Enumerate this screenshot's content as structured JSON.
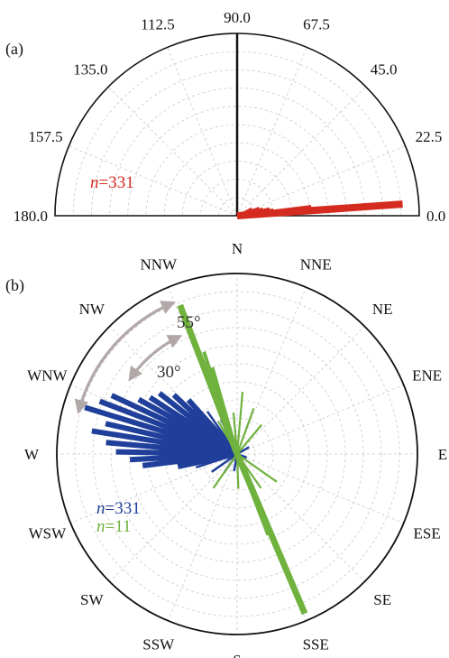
{
  "chart_data": [
    {
      "type": "polar-bar",
      "panel_label": "(a)",
      "range_deg": [
        0,
        180
      ],
      "angle_tick_labels": [
        "0.0",
        "22.5",
        "45.0",
        "67.5",
        "90.0",
        "112.5",
        "135.0",
        "157.5",
        "180.0"
      ],
      "annotation": {
        "n_italic": "n",
        "text": "=331",
        "color": "#d42a1f"
      },
      "series": [
        {
          "color": "#d42a1f",
          "bars": [
            {
              "angle": 4,
              "value": 1.0
            },
            {
              "angle": 7,
              "value": 0.45
            },
            {
              "angle": 10,
              "value": 0.22
            },
            {
              "angle": 13,
              "value": 0.2
            },
            {
              "angle": 16,
              "value": 0.16
            },
            {
              "angle": 20,
              "value": 0.14
            },
            {
              "angle": 27,
              "value": 0.1
            }
          ]
        }
      ],
      "reference_line_angle": 90
    },
    {
      "type": "rose",
      "panel_label": "(b)",
      "direction_labels": [
        "N",
        "NNE",
        "NE",
        "ENE",
        "E",
        "ESE",
        "SE",
        "SSE",
        "S",
        "SSW",
        "SW",
        "WSW",
        "W",
        "WNW",
        "NW",
        "NNW"
      ],
      "annotations": [
        {
          "text": "55°",
          "color": "#333333"
        },
        {
          "text": "30°",
          "color": "#333333"
        }
      ],
      "legend": [
        {
          "n_italic": "n",
          "text": "=331",
          "color": "#1f3f9a"
        },
        {
          "n_italic": "n",
          "text": "=11",
          "color": "#6fb23e"
        }
      ],
      "series": [
        {
          "color": "#1f3f9a",
          "bars": [
            {
              "azimuth": 252,
              "value": 0.25
            },
            {
              "azimuth": 258,
              "value": 0.35
            },
            {
              "azimuth": 263,
              "value": 0.55
            },
            {
              "azimuth": 267,
              "value": 0.62
            },
            {
              "azimuth": 271,
              "value": 0.7
            },
            {
              "azimuth": 275,
              "value": 0.76
            },
            {
              "azimuth": 279,
              "value": 0.85
            },
            {
              "azimuth": 283,
              "value": 0.78
            },
            {
              "azimuth": 287,
              "value": 0.92
            },
            {
              "azimuth": 291,
              "value": 0.85
            },
            {
              "azimuth": 295,
              "value": 0.8
            },
            {
              "azimuth": 299,
              "value": 0.65
            },
            {
              "azimuth": 303,
              "value": 0.6
            },
            {
              "azimuth": 308,
              "value": 0.57
            },
            {
              "azimuth": 313,
              "value": 0.5
            },
            {
              "azimuth": 318,
              "value": 0.42
            },
            {
              "azimuth": 325,
              "value": 0.3
            },
            {
              "azimuth": 335,
              "value": 0.22
            },
            {
              "azimuth": 345,
              "value": 0.15
            },
            {
              "azimuth": 60,
              "value": 0.08
            },
            {
              "azimuth": 110,
              "value": 0.06
            },
            {
              "azimuth": 190,
              "value": 0.1
            },
            {
              "azimuth": 215,
              "value": 0.13
            },
            {
              "azimuth": 235,
              "value": 0.18
            }
          ]
        },
        {
          "color": "#6fb23e",
          "bars": [
            {
              "azimuth": 339,
              "value": 0.92
            },
            {
              "azimuth": 342,
              "value": 0.62
            },
            {
              "azimuth": 344,
              "value": 0.52
            },
            {
              "azimuth": 157,
              "value": 1.0
            },
            {
              "azimuth": 159,
              "value": 0.5
            },
            {
              "azimuth": 5,
              "value": 0.36
            },
            {
              "azimuth": 20,
              "value": 0.28
            },
            {
              "azimuth": 40,
              "value": 0.22
            },
            {
              "azimuth": 125,
              "value": 0.28
            },
            {
              "azimuth": 145,
              "value": 0.24
            },
            {
              "azimuth": 215,
              "value": 0.24
            },
            {
              "azimuth": 355,
              "value": 0.24
            },
            {
              "azimuth": 330,
              "value": 0.22
            },
            {
              "azimuth": 178,
              "value": 0.2
            }
          ]
        }
      ]
    }
  ]
}
